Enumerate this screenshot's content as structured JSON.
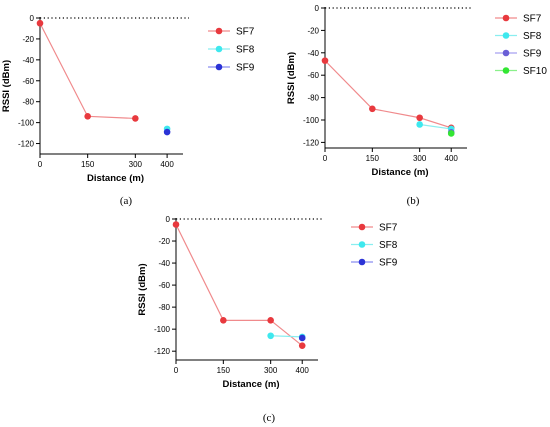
{
  "figure": {
    "panel_labels": [
      "(a)",
      "(b)",
      "(c)"
    ]
  },
  "chart_data": [
    {
      "type": "line",
      "panel": "(a)",
      "xlabel": "Distance (m)",
      "ylabel": "RSSI (dBm)",
      "x_ticks": [
        0,
        150,
        300,
        400
      ],
      "y_ticks": [
        0,
        -20,
        -40,
        -60,
        -80,
        -100,
        -120
      ],
      "xlim": [
        0,
        450
      ],
      "ylim": [
        -130,
        0
      ],
      "reference_line_y": 0,
      "legend_position": "right",
      "series": [
        {
          "name": "SF7",
          "color": "#e8393e",
          "line_color": "#f08a8c",
          "x": [
            0,
            150,
            300
          ],
          "y": [
            -5,
            -94,
            -96
          ]
        },
        {
          "name": "SF8",
          "color": "#3ee8ee",
          "line_color": "#8aeef0",
          "x": [
            400
          ],
          "y": [
            -106
          ]
        },
        {
          "name": "SF9",
          "color": "#2b33d6",
          "line_color": "#8a8ef0",
          "x": [
            400
          ],
          "y": [
            -109
          ]
        }
      ]
    },
    {
      "type": "line",
      "panel": "(b)",
      "xlabel": "Distance (m)",
      "ylabel": "RSSI (dBm)",
      "x_ticks": [
        0,
        150,
        300,
        400
      ],
      "y_ticks": [
        0,
        -20,
        -40,
        -60,
        -80,
        -100,
        -120
      ],
      "xlim": [
        0,
        450
      ],
      "ylim": [
        -125,
        0
      ],
      "reference_line_y": 0,
      "legend_position": "right",
      "series": [
        {
          "name": "SF7",
          "color": "#e8393e",
          "line_color": "#f08a8c",
          "x": [
            0,
            150,
            300,
            400
          ],
          "y": [
            -47,
            -90,
            -98,
            -107
          ]
        },
        {
          "name": "SF8",
          "color": "#3ee8ee",
          "line_color": "#8aeef0",
          "x": [
            300,
            400
          ],
          "y": [
            -104,
            -108
          ]
        },
        {
          "name": "SF9",
          "color": "#6a5fd6",
          "line_color": "#a8a0f0",
          "x": [
            400
          ],
          "y": [
            -111
          ]
        },
        {
          "name": "SF10",
          "color": "#33e633",
          "line_color": "#8af08a",
          "x": [
            400
          ],
          "y": [
            -112
          ]
        }
      ]
    },
    {
      "type": "line",
      "panel": "(c)",
      "xlabel": "Distance (m)",
      "ylabel": "RSSI (dBm)",
      "x_ticks": [
        0,
        150,
        300,
        400
      ],
      "y_ticks": [
        0,
        -20,
        -40,
        -60,
        -80,
        -100,
        -120
      ],
      "xlim": [
        0,
        450
      ],
      "ylim": [
        -128,
        0
      ],
      "reference_line_y": 0,
      "legend_position": "right",
      "series": [
        {
          "name": "SF7",
          "color": "#e8393e",
          "line_color": "#f08a8c",
          "x": [
            0,
            150,
            300,
            400
          ],
          "y": [
            -5,
            -92,
            -92,
            -115
          ]
        },
        {
          "name": "SF8",
          "color": "#3ee8ee",
          "line_color": "#8aeef0",
          "x": [
            300,
            400
          ],
          "y": [
            -106,
            -107
          ]
        },
        {
          "name": "SF9",
          "color": "#2b33d6",
          "line_color": "#8a8ef0",
          "x": [
            400
          ],
          "y": [
            -108
          ]
        }
      ]
    }
  ]
}
